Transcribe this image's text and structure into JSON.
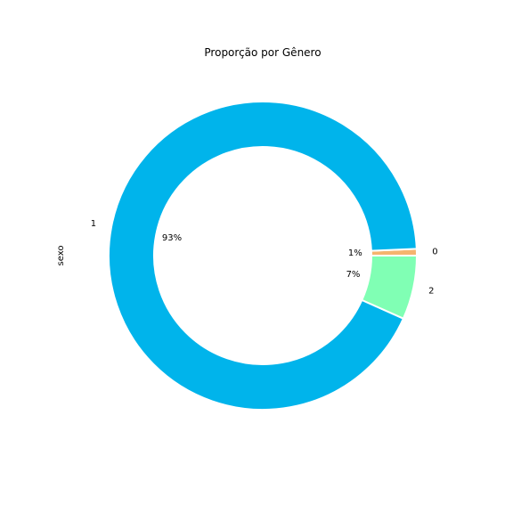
{
  "chart_data": {
    "type": "pie",
    "style": "donut",
    "title": "Proporção por Gênero",
    "ylabel": "sexo",
    "start_angle_deg": 0,
    "direction": "counterclockwise",
    "slices": [
      {
        "label": "0",
        "value": 0.7,
        "pct_label": "1%",
        "color": "#F5B46E"
      },
      {
        "label": "1",
        "value": 92.6,
        "pct_label": "93%",
        "color": "#00B4EB"
      },
      {
        "label": "2",
        "value": 6.7,
        "pct_label": "7%",
        "color": "#80FFB4"
      }
    ]
  }
}
